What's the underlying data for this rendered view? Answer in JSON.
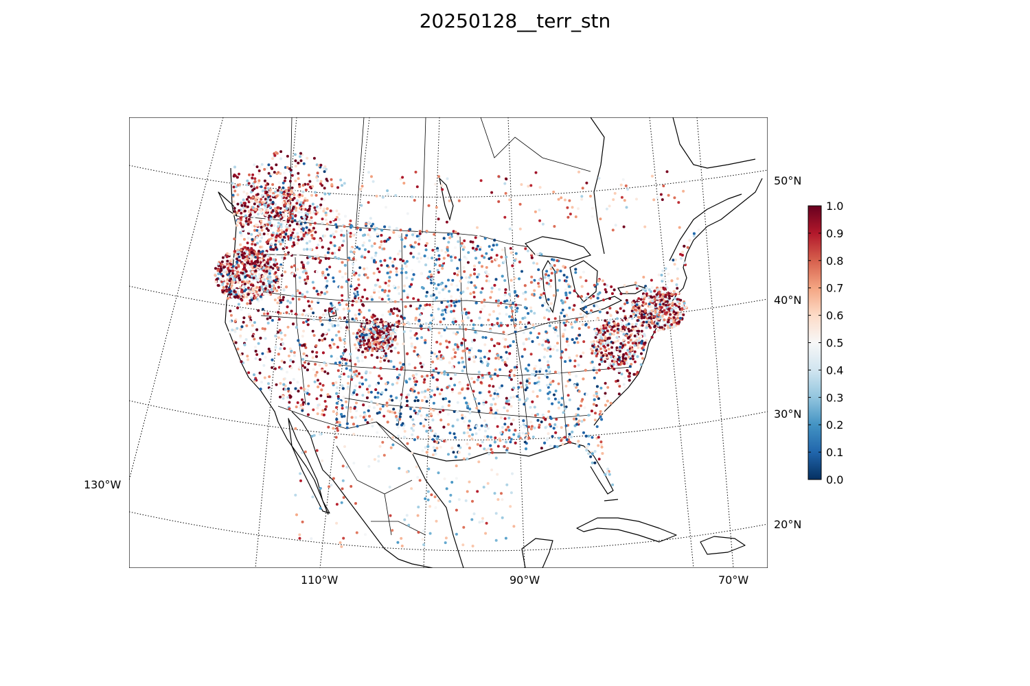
{
  "title": "20250128__terr_stn",
  "map": {
    "type": "station-scatter-map",
    "projection": "lambert-conformal",
    "region": "CONUS",
    "lat_labels": [
      "50°N",
      "40°N",
      "30°N",
      "20°N"
    ],
    "lon_labels": [
      "130°W",
      "110°W",
      "90°W",
      "70°W"
    ],
    "gridline_style": "dotted",
    "colormap": "RdBu_r",
    "colorbar": {
      "min": 0.0,
      "max": 1.0,
      "ticks": [
        "0.0",
        "0.1",
        "0.2",
        "0.3",
        "0.4",
        "0.5",
        "0.6",
        "0.7",
        "0.8",
        "0.9",
        "1.0"
      ],
      "colors": [
        "#053061",
        "#2166ac",
        "#4393c3",
        "#92c5de",
        "#d1e5f0",
        "#f7f7f7",
        "#fddbc7",
        "#f4a582",
        "#d6604d",
        "#b2182b",
        "#67001f"
      ]
    }
  }
}
